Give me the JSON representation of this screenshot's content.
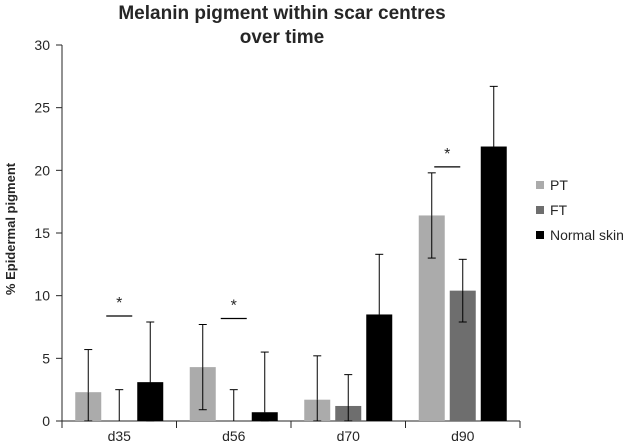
{
  "chart_data": {
    "type": "bar",
    "title": [
      "Melanin pigment within scar centres",
      "over time"
    ],
    "ylabel": "% Epidermal pigment",
    "xlabel": "",
    "ylim": [
      0,
      30
    ],
    "yticks": [
      0,
      5,
      10,
      15,
      20,
      25,
      30
    ],
    "categories": [
      "d35",
      "d56",
      "d70",
      "d90"
    ],
    "series": [
      {
        "name": "PT",
        "color": "#ababab",
        "values": [
          2.3,
          4.3,
          1.7,
          16.4
        ],
        "errors": [
          3.4,
          3.4,
          3.5,
          3.4
        ]
      },
      {
        "name": "FT",
        "color": "#6e6e6e",
        "values": [
          0,
          0,
          1.2,
          10.4
        ],
        "errors": [
          2.5,
          2.5,
          2.5,
          2.5
        ]
      },
      {
        "name": "Normal skin",
        "color": "#000000",
        "values": [
          3.1,
          0.7,
          8.5,
          21.9
        ],
        "errors": [
          4.8,
          4.8,
          4.8,
          4.8
        ]
      }
    ],
    "significance": [
      {
        "category": "d35",
        "from": "PT",
        "to": "Normal skin",
        "label": "*"
      },
      {
        "category": "d56",
        "from": "PT",
        "to": "Normal skin",
        "label": "*"
      },
      {
        "category": "d90",
        "from": "PT",
        "to": "FT",
        "label": "*"
      }
    ],
    "legend": "right",
    "grid": false
  }
}
